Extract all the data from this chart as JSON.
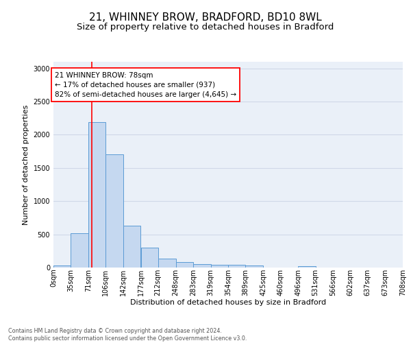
{
  "title": "21, WHINNEY BROW, BRADFORD, BD10 8WL",
  "subtitle": "Size of property relative to detached houses in Bradford",
  "xlabel": "Distribution of detached houses by size in Bradford",
  "ylabel": "Number of detached properties",
  "footer_line1": "Contains HM Land Registry data © Crown copyright and database right 2024.",
  "footer_line2": "Contains public sector information licensed under the Open Government Licence v3.0.",
  "annotation_line1": "21 WHINNEY BROW: 78sqm",
  "annotation_line2": "← 17% of detached houses are smaller (937)",
  "annotation_line3": "82% of semi-detached houses are larger (4,645) →",
  "bar_edges": [
    0,
    35,
    71,
    106,
    142,
    177,
    212,
    248,
    283,
    319,
    354,
    389,
    425,
    460,
    496,
    531,
    566,
    602,
    637,
    673,
    708
  ],
  "bar_heights": [
    30,
    520,
    2190,
    1710,
    630,
    295,
    135,
    80,
    55,
    38,
    38,
    30,
    5,
    5,
    25,
    5,
    5,
    5,
    5,
    5
  ],
  "bar_color": "#c5d8f0",
  "bar_edge_color": "#5b9bd5",
  "property_line_x": 78,
  "ylim": [
    0,
    3100
  ],
  "xlim": [
    0,
    708
  ],
  "tick_labels": [
    "0sqm",
    "35sqm",
    "71sqm",
    "106sqm",
    "142sqm",
    "177sqm",
    "212sqm",
    "248sqm",
    "283sqm",
    "319sqm",
    "354sqm",
    "389sqm",
    "425sqm",
    "460sqm",
    "496sqm",
    "531sqm",
    "566sqm",
    "602sqm",
    "637sqm",
    "673sqm",
    "708sqm"
  ],
  "tick_positions": [
    0,
    35,
    71,
    106,
    142,
    177,
    212,
    248,
    283,
    319,
    354,
    389,
    425,
    460,
    496,
    531,
    566,
    602,
    637,
    673,
    708
  ],
  "yticks": [
    0,
    500,
    1000,
    1500,
    2000,
    2500,
    3000
  ],
  "grid_color": "#d0d8e8",
  "background_color": "#eaf0f8",
  "title_fontsize": 11,
  "subtitle_fontsize": 9.5,
  "axis_label_fontsize": 8,
  "tick_fontsize": 7,
  "annotation_fontsize": 7.5,
  "footer_fontsize": 5.8
}
